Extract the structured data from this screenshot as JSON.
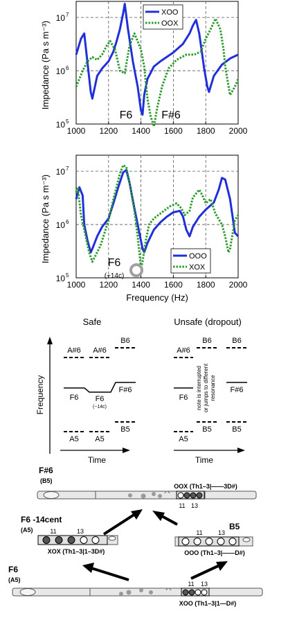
{
  "chart_data": [
    {
      "type": "line",
      "xlabel": "",
      "ylabel": "Impedance (Pa s m⁻³)",
      "xlim": [
        1000,
        2000
      ],
      "ylim": [
        100000,
        20000000
      ],
      "log_y": true,
      "grid": true,
      "legend_position": "top-right",
      "x_ticks": [
        "1000",
        "1200",
        "1400",
        "1600",
        "1800",
        "2000"
      ],
      "y_ticks": [
        "10^5",
        "10^6",
        "10^7"
      ],
      "annotations": [
        "F6",
        "F#6"
      ],
      "series": [
        {
          "name": "XOO",
          "style": "solid",
          "color": "#1f2fd9",
          "x": [
            1000,
            1030,
            1050,
            1070,
            1090,
            1100,
            1130,
            1160,
            1200,
            1230,
            1250,
            1270,
            1290,
            1300,
            1320,
            1350,
            1380,
            1400,
            1410,
            1420,
            1440,
            1480,
            1520,
            1600,
            1660,
            1700,
            1720,
            1740,
            1760,
            1790,
            1810,
            1820,
            1850,
            1900,
            1950,
            2000
          ],
          "y": [
            2000000,
            4000000,
            5000000,
            1400000,
            400000,
            300000,
            800000,
            1100000,
            1500000,
            2300000,
            3600000,
            6000000,
            12000000,
            18000000,
            6000000,
            1500000,
            500000,
            180000,
            150000,
            350000,
            700000,
            1200000,
            1500000,
            2200000,
            3200000,
            5000000,
            7000000,
            9000000,
            5000000,
            1100000,
            500000,
            400000,
            800000,
            1300000,
            1700000,
            2000000
          ]
        },
        {
          "name": "OOX",
          "style": "dotted",
          "color": "#2a9a2a",
          "x": [
            1000,
            1040,
            1070,
            1100,
            1130,
            1160,
            1190,
            1210,
            1240,
            1270,
            1300,
            1330,
            1360,
            1400,
            1420,
            1440,
            1460,
            1480,
            1500,
            1530,
            1570,
            1620,
            1680,
            1730,
            1770,
            1800,
            1830,
            1860,
            1890,
            1910,
            1920,
            1950,
            1980,
            2000
          ],
          "y": [
            500000,
            1000000,
            1500000,
            1800000,
            1600000,
            2000000,
            3000000,
            3600000,
            2500000,
            1000000,
            900000,
            3000000,
            5000000,
            2500000,
            1200000,
            300000,
            140000,
            90000,
            200000,
            500000,
            1100000,
            1600000,
            2000000,
            2000000,
            2300000,
            4000000,
            6000000,
            9500000,
            6000000,
            2500000,
            1200000,
            350000,
            500000,
            700000
          ]
        }
      ]
    },
    {
      "type": "line",
      "xlabel": "Frequency (Hz)",
      "ylabel": "Impedance (Pa s m⁻³)",
      "xlim": [
        1000,
        2000
      ],
      "ylim": [
        100000,
        20000000
      ],
      "log_y": true,
      "grid": true,
      "legend_position": "bottom-right",
      "x_ticks": [
        "1000",
        "1200",
        "1400",
        "1600",
        "1800",
        "2000"
      ],
      "y_ticks": [
        "10^5",
        "10^6",
        "10^7"
      ],
      "annotations": [
        "F6",
        "(−14c)"
      ],
      "series": [
        {
          "name": "OOO",
          "style": "solid",
          "color": "#1f2fd9",
          "x": [
            1000,
            1020,
            1040,
            1050,
            1070,
            1090,
            1100,
            1130,
            1160,
            1200,
            1230,
            1260,
            1290,
            1310,
            1330,
            1360,
            1390,
            1410,
            1420,
            1440,
            1480,
            1520,
            1560,
            1600,
            1640,
            1660,
            1680,
            1700,
            1720,
            1760,
            1800,
            1850,
            1880,
            1900,
            1920,
            1950,
            1980,
            2000
          ],
          "y": [
            3000000,
            5000000,
            3500000,
            1000000,
            500000,
            300000,
            350000,
            600000,
            900000,
            1300000,
            2500000,
            5000000,
            9500000,
            10500000,
            6000000,
            2000000,
            700000,
            350000,
            300000,
            450000,
            800000,
            1100000,
            1400000,
            1700000,
            1800000,
            1400000,
            800000,
            600000,
            900000,
            1400000,
            1900000,
            2600000,
            4500000,
            7500000,
            7000000,
            3000000,
            700000,
            600000
          ]
        },
        {
          "name": "XOX",
          "style": "dotted",
          "color": "#2a9a2a",
          "x": [
            1000,
            1010,
            1030,
            1050,
            1080,
            1100,
            1150,
            1200,
            1230,
            1270,
            1290,
            1310,
            1330,
            1360,
            1380,
            1390,
            1400,
            1410,
            1430,
            1450,
            1480,
            1530,
            1580,
            1620,
            1650,
            1670,
            1700,
            1720,
            1760,
            1780,
            1800,
            1830,
            1860,
            1900,
            1920,
            1940,
            1950,
            1980,
            2000
          ],
          "y": [
            4000000,
            5000000,
            1500000,
            800000,
            300000,
            200000,
            400000,
            1200000,
            3000000,
            9000000,
            13000000,
            12000000,
            6000000,
            1800000,
            600000,
            300000,
            150000,
            200000,
            500000,
            1000000,
            1300000,
            1700000,
            2200000,
            2500000,
            2000000,
            1500000,
            1800000,
            3200000,
            4500000,
            3500000,
            2500000,
            3000000,
            1600000,
            1000000,
            600000,
            300000,
            350000,
            1200000,
            1500000
          ]
        }
      ]
    }
  ],
  "diagram": {
    "safe": {
      "title": "Safe",
      "labels": {
        "a6": "A#6",
        "a6b": "A#6",
        "b6": "B6",
        "f6": "F6",
        "f6b": "F6",
        "cents": "(−14c)",
        "fs6": "F#6",
        "a5": "A5",
        "a5b": "A5",
        "b5": "B5"
      }
    },
    "unsafe": {
      "title": "Unsafe (dropout)",
      "labels": {
        "a6": "A#6",
        "b6": "B6",
        "b6b": "B6",
        "f6": "F6",
        "fs6": "F#6",
        "a5": "A5",
        "b5": "B5",
        "b5b": "B5"
      },
      "note_lines": [
        "note is interrupted",
        "or jumps to different",
        "resonance"
      ]
    },
    "y_axis_label": "Frequency",
    "x_axis_label": "Time"
  },
  "flutes": {
    "top": {
      "note": "F#6",
      "sub": "(B5)",
      "fingering": "OOX (Th1–3|——3D#)",
      "key_a": "11",
      "key_b": "13"
    },
    "left": {
      "note": "F6 -14cent",
      "sub": "(A5)",
      "fingering": "XOX (Th1–3|1–3D#)",
      "key_a": "11",
      "key_b": "13"
    },
    "right": {
      "note": "B5",
      "fingering": "OOO (Th1–3|——D#)",
      "key_a": "11",
      "key_b": "13"
    },
    "bottom": {
      "note": "F6",
      "sub": "(A5)",
      "fingering": "XOO (Th1–3|1—D#)",
      "key_a": "11",
      "key_b": "13"
    }
  },
  "colors": {
    "blue": "#1f2fd9",
    "green": "#2a9a2a",
    "grid": "#555555",
    "flute_body": "#e8e8e8",
    "hole_gray": "#9a9a9a",
    "marker": "#a0a0a0"
  }
}
